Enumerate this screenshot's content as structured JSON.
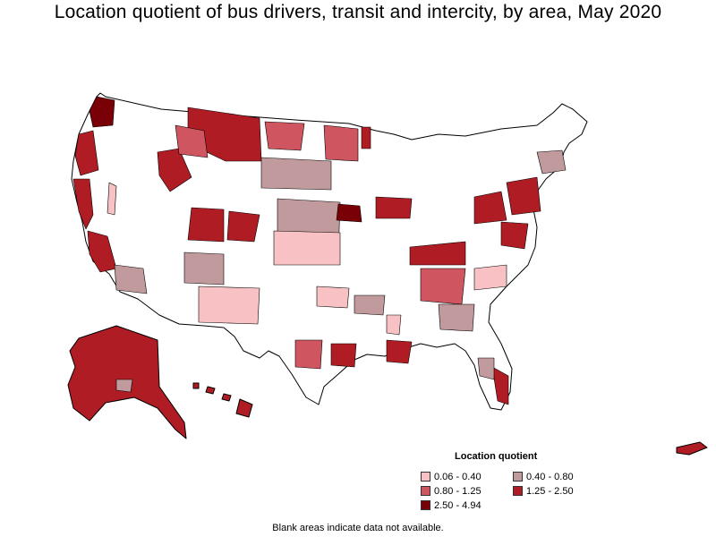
{
  "title": "Location quotient of bus drivers, transit and intercity, by area, May 2020",
  "legend": {
    "title": "Location quotient",
    "items": [
      {
        "label": "0.06 - 0.40",
        "color": "#f8c2c4"
      },
      {
        "label": "0.40 - 0.80",
        "color": "#c09a9c"
      },
      {
        "label": "0.80 - 1.25",
        "color": "#cf5560"
      },
      {
        "label": "1.25 - 2.50",
        "color": "#b01c24"
      },
      {
        "label": "2.50 - 4.94",
        "color": "#7a0008"
      }
    ]
  },
  "footnote": "Blank areas indicate data not available."
}
